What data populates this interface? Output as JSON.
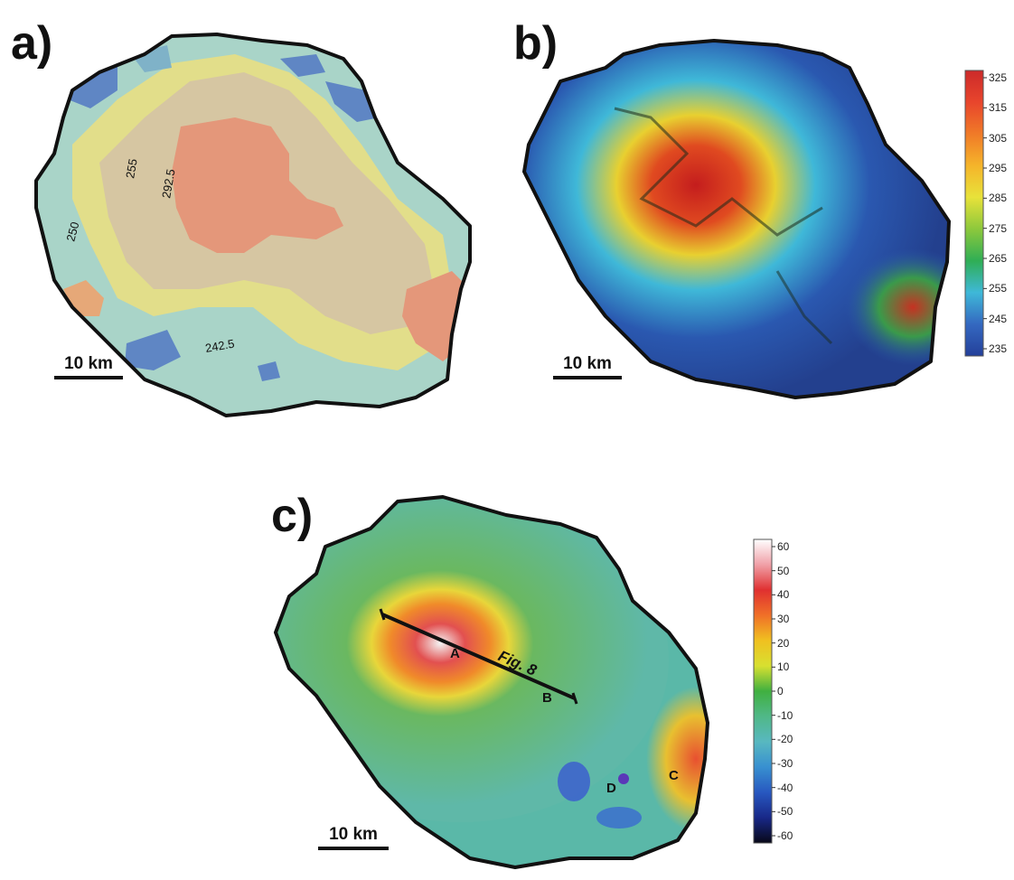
{
  "panels": {
    "a": {
      "label": "a)",
      "scale_label": "10 km",
      "contour_labels": [
        "292.5",
        "255",
        "250",
        "242.5"
      ]
    },
    "b": {
      "label": "b)",
      "scale_label": "10 km"
    },
    "c": {
      "label": "c)",
      "scale_label": "10 km",
      "annotations": {
        "profile": "Fig. 8",
        "point_a": "A",
        "point_b": "B",
        "point_c": "C",
        "point_d": "D"
      }
    }
  },
  "colorbars": {
    "b": {
      "ticks": [
        "325",
        "315",
        "305",
        "295",
        "285",
        "275",
        "265",
        "255",
        "245",
        "235"
      ],
      "colors": [
        "#cc2a2a",
        "#e8452c",
        "#f07a28",
        "#f5b42a",
        "#e8e23a",
        "#8cc83c",
        "#2fae55",
        "#3fb8d8",
        "#3468c0",
        "#24409a"
      ]
    },
    "c": {
      "ticks": [
        "60",
        "50",
        "40",
        "30",
        "20",
        "10",
        "0",
        "-10",
        "-20",
        "-30",
        "-40",
        "-50",
        "-60"
      ],
      "colors": [
        "#ffffff",
        "#f0a0a8",
        "#e03030",
        "#f07028",
        "#f0c020",
        "#d8e030",
        "#40b040",
        "#50b888",
        "#58b8c0",
        "#3890d0",
        "#2858c0",
        "#182888",
        "#080818"
      ]
    }
  }
}
